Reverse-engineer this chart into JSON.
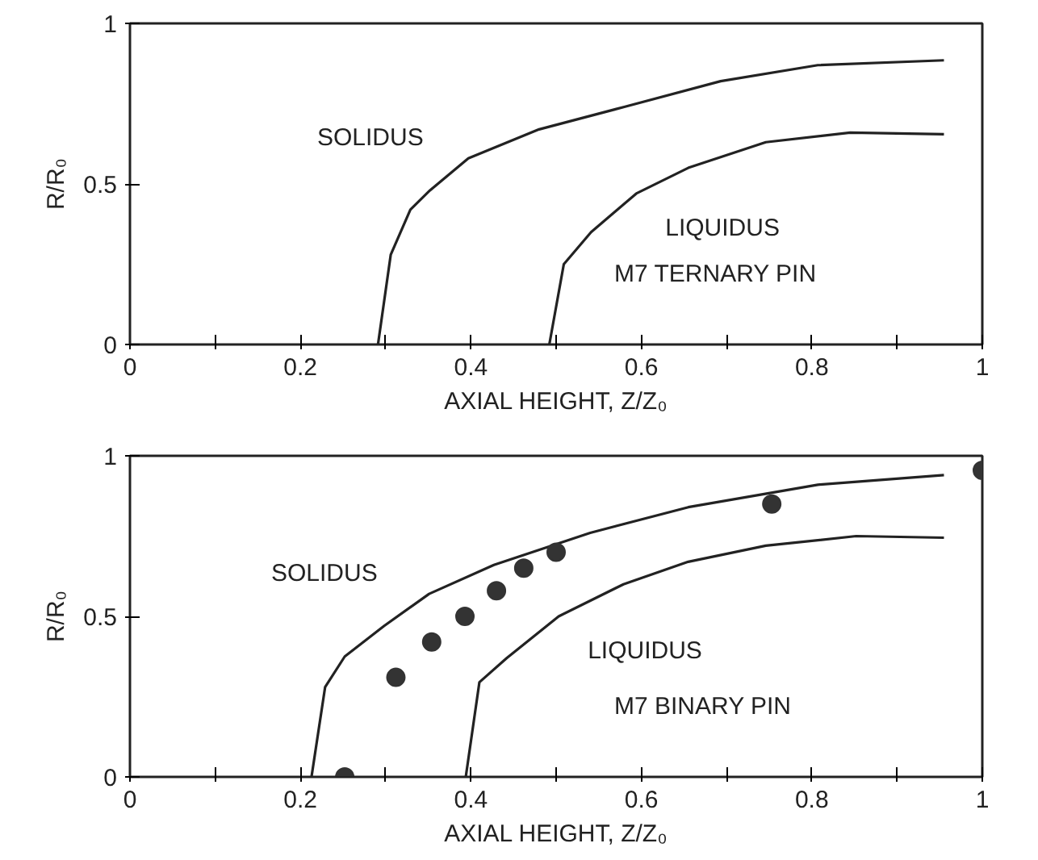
{
  "chart_data": [
    {
      "type": "line",
      "xlabel": "AXIAL HEIGHT, Z/Z₀",
      "ylabel": "R/R₀",
      "xlim": [
        0,
        1
      ],
      "ylim": [
        0,
        1
      ],
      "xticks": [
        0,
        {
          "value": 0.1,
          "label": null
        },
        0.2,
        {
          "value": 0.3,
          "label": null
        },
        0.4,
        {
          "value": 0.5,
          "label": null
        },
        0.6,
        {
          "value": 0.7,
          "label": null
        },
        0.8,
        {
          "value": 0.9,
          "label": null
        },
        1
      ],
      "yticks": [
        0,
        0.5,
        1
      ],
      "grid": false,
      "legend": false,
      "marker": "none",
      "line_style": "solid",
      "series": [
        {
          "name": "SOLIDUS",
          "color": "#222222",
          "x": [
            0.291,
            0.306,
            0.329,
            0.352,
            0.397,
            0.48,
            0.58,
            0.693,
            0.807,
            0.955
          ],
          "values": [
            0,
            0.28,
            0.42,
            0.48,
            0.58,
            0.67,
            0.74,
            0.82,
            0.87,
            0.885
          ]
        },
        {
          "name": "LIQUIDUS",
          "color": "#222222",
          "x": [
            0.492,
            0.509,
            0.541,
            0.594,
            0.655,
            0.746,
            0.845,
            0.955
          ],
          "values": [
            0,
            0.25,
            0.35,
            0.47,
            0.55,
            0.63,
            0.66,
            0.655
          ]
        }
      ],
      "annotations": [
        "M7 TERNARY PIN"
      ]
    },
    {
      "type": "line",
      "xlabel": "AXIAL HEIGHT, Z/Z₀",
      "ylabel": "R/R₀",
      "xlim": [
        0,
        1
      ],
      "ylim": [
        0,
        1
      ],
      "xticks": [
        0,
        {
          "value": 0.1,
          "label": null
        },
        0.2,
        {
          "value": 0.3,
          "label": null
        },
        0.4,
        {
          "value": 0.5,
          "label": null
        },
        0.6,
        {
          "value": 0.7,
          "label": null
        },
        0.8,
        {
          "value": 0.9,
          "label": null
        },
        1
      ],
      "yticks": [
        0,
        0.5,
        1
      ],
      "grid": false,
      "legend": false,
      "marker": "none",
      "line_style": "solid",
      "series": [
        {
          "name": "SOLIDUS",
          "color": "#222222",
          "x": [
            0.213,
            0.229,
            0.252,
            0.298,
            0.351,
            0.427,
            0.54,
            0.655,
            0.807,
            0.955
          ],
          "values": [
            0,
            0.28,
            0.375,
            0.47,
            0.57,
            0.66,
            0.76,
            0.84,
            0.91,
            0.94
          ]
        },
        {
          "name": "LIQUIDUS",
          "color": "#222222",
          "x": [
            0.394,
            0.41,
            0.442,
            0.503,
            0.579,
            0.655,
            0.746,
            0.852,
            0.955
          ],
          "values": [
            0,
            0.295,
            0.37,
            0.5,
            0.6,
            0.67,
            0.72,
            0.75,
            0.745
          ]
        },
        {
          "type": "scatter",
          "marker": "circle",
          "color": "#333333",
          "x": [
            0.252,
            0.312,
            0.354,
            0.393,
            0.43,
            0.462,
            0.5,
            0.753,
            1.0
          ],
          "values": [
            0,
            0.31,
            0.42,
            0.5,
            0.58,
            0.65,
            0.7,
            0.85,
            0.955
          ]
        }
      ],
      "annotations": [
        "M7 BINARY PIN"
      ]
    }
  ]
}
